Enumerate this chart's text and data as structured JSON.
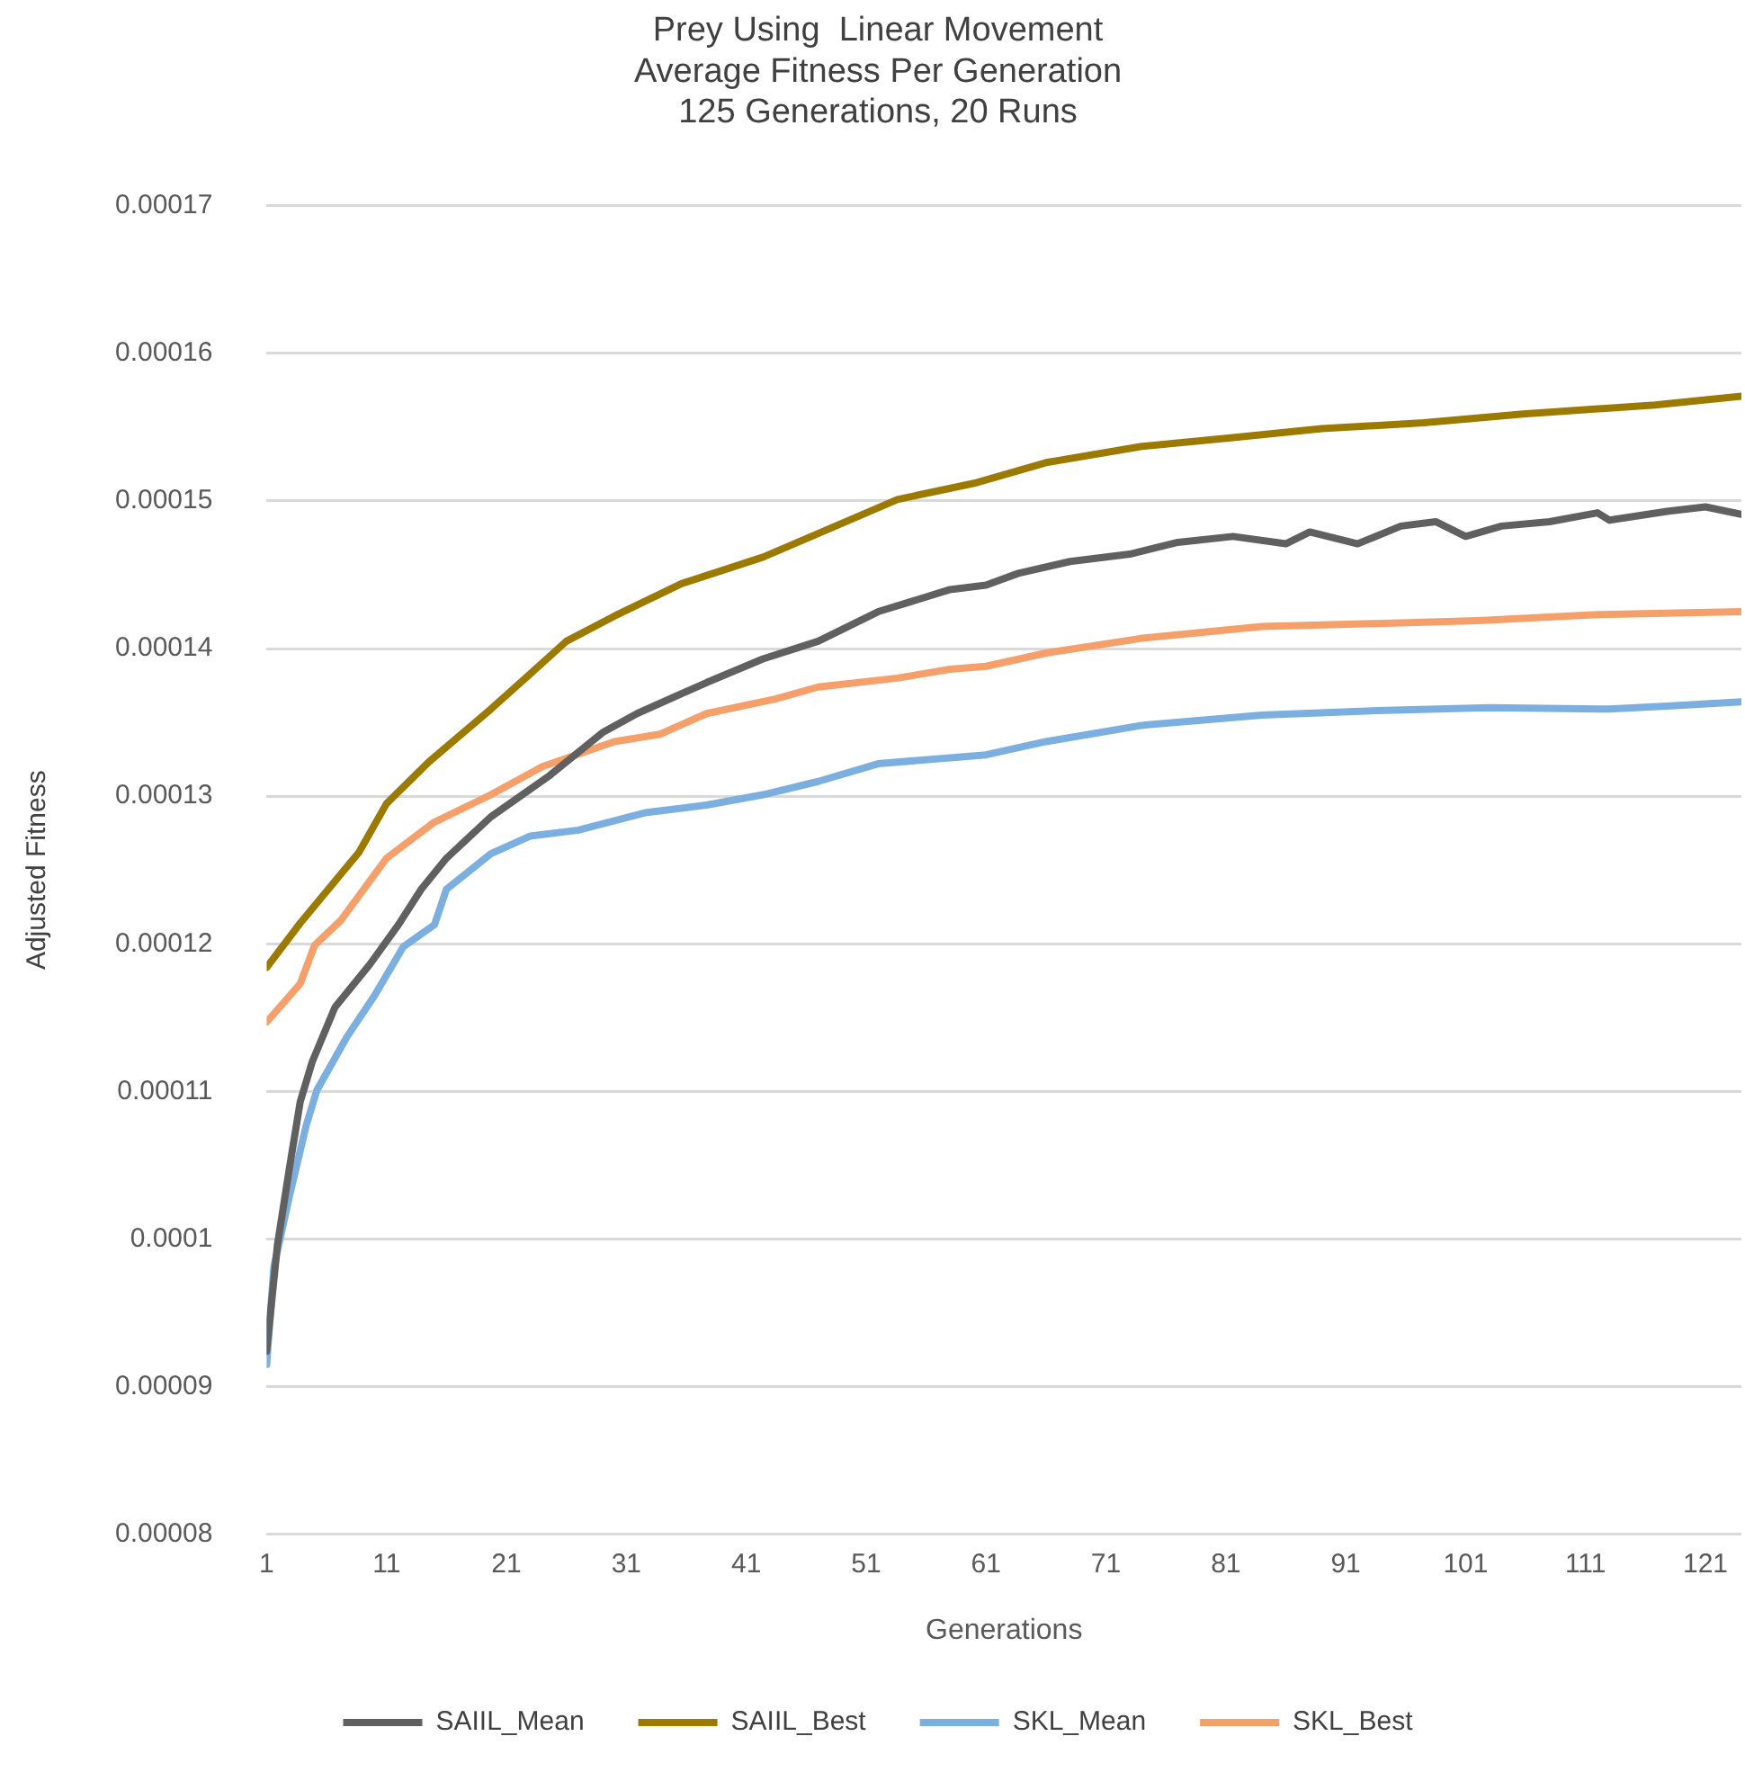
{
  "chart_data": {
    "type": "line",
    "title": "Prey Using  Linear Movement\nAverage Fitness Per Generation\n125 Generations, 20 Runs",
    "xlabel": "Generations",
    "ylabel": "Adjusted Fitness",
    "xlim": [
      1,
      124
    ],
    "xticks": [
      1,
      11,
      21,
      31,
      41,
      51,
      61,
      71,
      81,
      91,
      101,
      111,
      121
    ],
    "ylim": [
      8e-05,
      0.00017
    ],
    "yticks": [
      {
        "value": 8e-05,
        "label": "0.00008"
      },
      {
        "value": 9e-05,
        "label": "0.00009"
      },
      0.0001,
      0.00011,
      0.00012,
      0.00013,
      0.00014,
      0.00015,
      0.00016,
      0.00017
    ],
    "grid": "y",
    "legend": "bottom",
    "marker": "none",
    "line_style": "solid",
    "series": [
      {
        "name": "SAIIL_Mean",
        "color": "#606060",
        "x": [
          1,
          1.9,
          2.9,
          3.8,
          4.8,
          6.7,
          9.6,
          12,
          13.9,
          16,
          19.7,
          24.6,
          29,
          31.9,
          37.7,
          42.4,
          47,
          52,
          58,
          61,
          63.7,
          68,
          73,
          77,
          81.6,
          86,
          88,
          92,
          95.6,
          98.5,
          101,
          104,
          108,
          112,
          113,
          117.8,
          121,
          124
        ],
        "values": [
          9.24e-05,
          9.96e-05,
          0.0001048,
          0.0001093,
          0.000112,
          0.0001157,
          0.0001186,
          0.0001213,
          0.0001237,
          0.0001258,
          0.0001286,
          0.0001314,
          0.0001343,
          0.0001356,
          0.0001377,
          0.0001393,
          0.0001405,
          0.0001425,
          0.000144,
          0.0001443,
          0.0001451,
          0.0001459,
          0.0001464,
          0.0001472,
          0.0001476,
          0.0001471,
          0.0001479,
          0.0001471,
          0.0001483,
          0.0001486,
          0.0001476,
          0.0001483,
          0.0001486,
          0.0001492,
          0.0001487,
          0.0001493,
          0.0001496,
          0.0001491
        ]
      },
      {
        "name": "SAIIL_Best",
        "color": "#9c7a00",
        "x": [
          1,
          3.8,
          8.7,
          11,
          14.5,
          19.7,
          23,
          26,
          30,
          35.6,
          42.4,
          47,
          53.6,
          60,
          66,
          74,
          81.6,
          89,
          97.5,
          105.8,
          116.8,
          124
        ],
        "values": [
          0.0001184,
          0.0001214,
          0.0001262,
          0.0001295,
          0.0001323,
          0.0001359,
          0.0001383,
          0.0001405,
          0.0001422,
          0.0001444,
          0.0001462,
          0.0001478,
          0.0001501,
          0.0001512,
          0.0001526,
          0.0001537,
          0.0001543,
          0.0001549,
          0.0001553,
          0.0001559,
          0.0001565,
          0.0001571
        ]
      },
      {
        "name": "SKL_Mean",
        "color": "#7aafe0",
        "x": [
          1,
          1.6,
          2.9,
          4.3,
          5.2,
          7.7,
          10,
          12.4,
          15,
          16,
          19.7,
          23,
          27,
          32.7,
          37.7,
          42.4,
          47,
          52,
          61,
          66,
          74,
          84,
          93.6,
          103,
          113,
          117.8,
          124
        ],
        "values": [
          9.15e-05,
          9.81e-05,
          0.0001029,
          0.0001077,
          0.0001101,
          0.0001137,
          0.0001165,
          0.0001198,
          0.0001213,
          0.0001237,
          0.0001261,
          0.0001273,
          0.0001277,
          0.0001289,
          0.0001294,
          0.0001301,
          0.000131,
          0.0001322,
          0.0001328,
          0.0001337,
          0.0001348,
          0.0001355,
          0.0001358,
          0.000136,
          0.0001359,
          0.0001361,
          0.0001364
        ]
      },
      {
        "name": "SKL_Best",
        "color": "#f5a06a",
        "x": [
          1,
          3.8,
          5,
          7.2,
          11,
          14.9,
          19.7,
          24,
          30,
          33.8,
          37.7,
          43.5,
          47,
          53.6,
          58,
          61,
          66,
          74,
          84,
          93.6,
          102,
          112,
          124
        ],
        "values": [
          0.0001147,
          0.0001173,
          0.0001199,
          0.0001216,
          0.0001258,
          0.0001282,
          0.0001301,
          0.000132,
          0.0001337,
          0.0001342,
          0.0001356,
          0.0001366,
          0.0001374,
          0.000138,
          0.0001386,
          0.0001388,
          0.0001397,
          0.0001407,
          0.0001415,
          0.0001417,
          0.0001419,
          0.0001423,
          0.0001425
        ]
      }
    ]
  }
}
